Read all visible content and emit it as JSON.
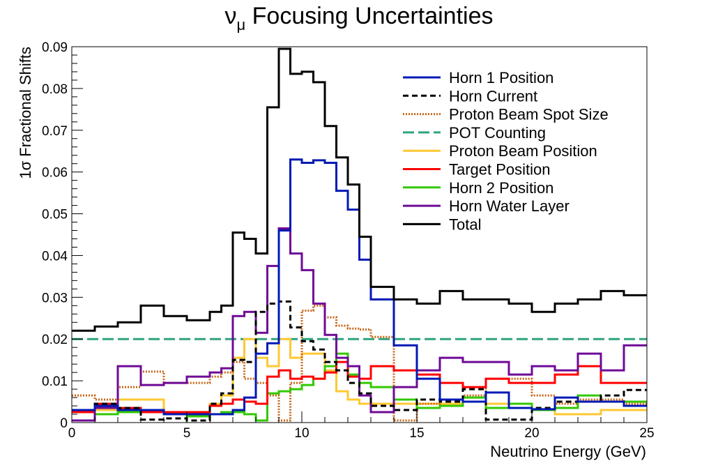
{
  "chart_data": {
    "type": "line",
    "title": "νμ Focusing Uncertainties",
    "title_main": "ν",
    "title_sub": "μ",
    "title_rest": " Focusing Uncertainties",
    "xlabel": "Neutrino Energy (GeV)",
    "ylabel": "1σ Fractional Shifts",
    "xlim": [
      0,
      25
    ],
    "ylim": [
      0,
      0.09
    ],
    "xticks": [
      "0",
      "5",
      "10",
      "15",
      "20",
      "25"
    ],
    "yticks": [
      "0",
      "0.01",
      "0.02",
      "0.03",
      "0.04",
      "0.05",
      "0.06",
      "0.07",
      "0.08",
      "0.09"
    ],
    "grid": false,
    "legend_position": "top-right",
    "x_bin_edges": [
      0,
      1,
      2,
      3,
      4,
      5,
      6,
      6.5,
      7,
      7.5,
      8,
      8.5,
      9,
      9.5,
      10,
      10.5,
      11,
      11.5,
      12,
      12.5,
      13,
      14,
      15,
      16,
      17,
      18,
      19,
      20,
      21,
      22,
      23,
      24,
      25
    ],
    "series": [
      {
        "name": "Horn 1 Position",
        "color": "#0019b4",
        "dash": "solid",
        "values": [
          0.003,
          0.004,
          0.003,
          0.003,
          0.002,
          0.002,
          0.002,
          0.002,
          0.003,
          0.006,
          0.0165,
          0.019,
          0.046,
          0.063,
          0.0622,
          0.0628,
          0.0622,
          0.0555,
          0.051,
          0.039,
          0.0295,
          0.0185,
          0.0105,
          0.0055,
          0.005,
          0.0072,
          0.0035,
          0.0032,
          0.006,
          0.005,
          0.005,
          0.004
        ]
      },
      {
        "name": "Horn Current",
        "color": "#000000",
        "dash": "8,5",
        "values": [
          0.003,
          0.0045,
          0.0035,
          0.0007,
          0.001,
          0.0005,
          0.0045,
          0.007,
          0.015,
          0.0145,
          0.0265,
          0.0285,
          0.029,
          0.0228,
          0.0195,
          0.0175,
          0.0145,
          0.0125,
          0.0095,
          0.007,
          0.004,
          0.003,
          0.0055,
          0.005,
          0.008,
          0.0007,
          0.0007,
          0.0035,
          0.005,
          0.005,
          0.0065,
          0.0078
        ]
      },
      {
        "name": "Proton Beam Spot Size",
        "color": "#c86414",
        "dash": "2,2",
        "values": [
          0.0065,
          0.0055,
          0.0085,
          0.0122,
          0.0095,
          0.0095,
          0.011,
          0.012,
          0.0145,
          0.0105,
          0.0095,
          0.0065,
          0.0005,
          0.0095,
          0.0268,
          0.028,
          0.0252,
          0.0232,
          0.0225,
          0.0223,
          0.0205,
          0.0005,
          0.0045,
          0.0055,
          0.0065,
          0.0105,
          0.0105,
          0.0065,
          0.0045,
          0.0055,
          0.0055,
          0.0045
        ]
      },
      {
        "name": "POT Counting",
        "color": "#2ea47c",
        "dash": "16,6",
        "values": [
          0.02,
          0.02,
          0.02,
          0.02,
          0.02,
          0.02,
          0.02,
          0.02,
          0.02,
          0.02,
          0.02,
          0.02,
          0.02,
          0.02,
          0.02,
          0.02,
          0.02,
          0.02,
          0.02,
          0.02,
          0.02,
          0.02,
          0.02,
          0.02,
          0.02,
          0.02,
          0.02,
          0.02,
          0.02,
          0.02,
          0.02,
          0.02
        ]
      },
      {
        "name": "Proton Beam Position",
        "color": "#ffc832",
        "dash": "solid",
        "values": [
          0.0025,
          0.003,
          0.0055,
          0.0055,
          0.0025,
          0.0025,
          0.0045,
          0.0065,
          0.0155,
          0.02,
          0.0155,
          0.0135,
          0.02,
          0.0155,
          0.0165,
          0.0165,
          0.0125,
          0.0075,
          0.0055,
          0.0045,
          0.0045,
          0.0045,
          0.0045,
          0.0045,
          0.005,
          0.0045,
          0.0045,
          0.003,
          0.002,
          0.002,
          0.003,
          0.003
        ]
      },
      {
        "name": "Target Position",
        "color": "#ff0000",
        "dash": "solid",
        "values": [
          0.0025,
          0.0045,
          0.0035,
          0.0025,
          0.0025,
          0.0025,
          0.004,
          0.0045,
          0.0055,
          0.005,
          0.0045,
          0.011,
          0.0125,
          0.0105,
          0.011,
          0.0105,
          0.012,
          0.0145,
          0.011,
          0.0105,
          0.0135,
          0.0125,
          0.0115,
          0.0095,
          0.0085,
          0.0105,
          0.0095,
          0.0095,
          0.0115,
          0.0135,
          0.0095,
          0.0095
        ]
      },
      {
        "name": "Horn 2 Position",
        "color": "#32c800",
        "dash": "solid",
        "values": [
          0.003,
          0.002,
          0.0025,
          0.0025,
          0.002,
          0.0015,
          0.002,
          0.0025,
          0.0025,
          0.002,
          0.0005,
          0.007,
          0.0075,
          0.008,
          0.009,
          0.0105,
          0.0135,
          0.0165,
          0.0115,
          0.0095,
          0.0085,
          0.0055,
          0.0035,
          0.004,
          0.006,
          0.0035,
          0.0045,
          0.003,
          0.0035,
          0.0065,
          0.005,
          0.005
        ]
      },
      {
        "name": "Horn Water Layer",
        "color": "#6e0a96",
        "dash": "solid",
        "values": [
          0.0005,
          0.0035,
          0.0135,
          0.009,
          0.0095,
          0.011,
          0.012,
          0.013,
          0.0255,
          0.0265,
          0.0215,
          0.0375,
          0.0465,
          0.0405,
          0.0365,
          0.0285,
          0.021,
          0.0155,
          0.0135,
          0.0065,
          0.0025,
          0.0085,
          0.0125,
          0.0155,
          0.0145,
          0.0145,
          0.0115,
          0.0135,
          0.0125,
          0.0165,
          0.0125,
          0.0185
        ]
      },
      {
        "name": "Total",
        "color": "#000000",
        "dash": "solid",
        "values": [
          0.022,
          0.023,
          0.024,
          0.028,
          0.0255,
          0.0245,
          0.0265,
          0.028,
          0.0455,
          0.044,
          0.0405,
          0.0755,
          0.0895,
          0.0835,
          0.084,
          0.0815,
          0.071,
          0.0635,
          0.057,
          0.0445,
          0.0325,
          0.0295,
          0.0285,
          0.0315,
          0.0295,
          0.0295,
          0.0285,
          0.0265,
          0.0285,
          0.0295,
          0.0315,
          0.0305
        ]
      }
    ]
  }
}
